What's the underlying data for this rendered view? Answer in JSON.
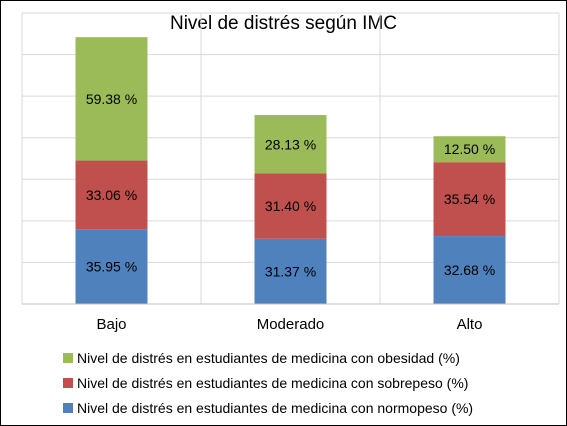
{
  "chart_data": {
    "type": "bar",
    "stacked": true,
    "title": "Nivel de distrés según IMC",
    "categories": [
      "Bajo",
      "Moderado",
      "Alto"
    ],
    "series": [
      {
        "name": "Nivel de distrés en estudiantes de medicina con normopeso (%)",
        "color": "#4f81bd",
        "values": [
          35.95,
          31.37,
          32.68
        ],
        "labels": [
          "35.95 %",
          "31.37 %",
          "32.68 %"
        ]
      },
      {
        "name": "Nivel de distrés en estudiantes de medicina con sobrepeso (%)",
        "color": "#c0504d",
        "values": [
          33.06,
          31.4,
          35.54
        ],
        "labels": [
          "33.06 %",
          "31.40 %",
          "35.54 %"
        ]
      },
      {
        "name": "Nivel de distrés en estudiantes de medicina con obesidad (%)",
        "color": "#9bbb59",
        "values": [
          59.38,
          28.13,
          12.5
        ],
        "labels": [
          "59.38 %",
          "28.13 %",
          "12.50 %"
        ]
      }
    ],
    "ylim": [
      0,
      140
    ],
    "grid": true,
    "legend_position": "bottom"
  }
}
